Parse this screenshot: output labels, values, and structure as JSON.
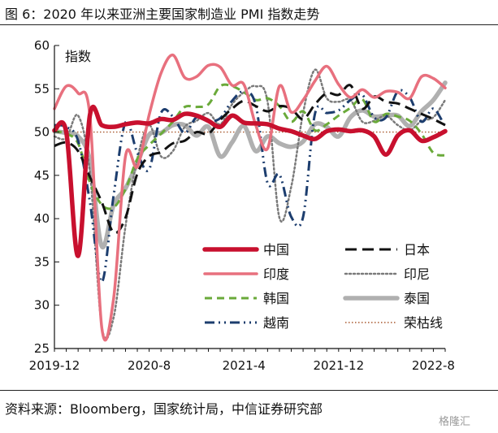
{
  "figure": {
    "title": "图 6：2020 年以来亚洲主要国家制造业 PMI 指数走势",
    "source": "资料来源：Bloomberg，国家统计局，中信证券研究部",
    "watermark": "格隆汇"
  },
  "chart_data": {
    "type": "line",
    "ylabel": "指数",
    "ylim": [
      25,
      60
    ],
    "yticks": [
      25,
      30,
      35,
      40,
      45,
      50,
      55,
      60
    ],
    "xticks": [
      "2019-12",
      "2020-8",
      "2021-4",
      "2021-12",
      "2022-8"
    ],
    "x": [
      "2019-12",
      "2020-1",
      "2020-2",
      "2020-3",
      "2020-4",
      "2020-5",
      "2020-6",
      "2020-7",
      "2020-8",
      "2020-9",
      "2020-10",
      "2020-11",
      "2020-12",
      "2021-1",
      "2021-2",
      "2021-3",
      "2021-4",
      "2021-5",
      "2021-6",
      "2021-7",
      "2021-8",
      "2021-9",
      "2021-10",
      "2021-11",
      "2021-12",
      "2022-1",
      "2022-2",
      "2022-3",
      "2022-4",
      "2022-5",
      "2022-6",
      "2022-7",
      "2022-8",
      "2022-9"
    ],
    "grid": false,
    "legend_position": "bottom-right",
    "series": [
      {
        "name": "中国",
        "color": "#c8102e",
        "style": "solid-thick",
        "values": [
          50.2,
          50.0,
          35.7,
          52.0,
          50.8,
          50.6,
          50.9,
          51.1,
          51.0,
          51.5,
          51.4,
          52.1,
          51.9,
          51.3,
          50.6,
          51.9,
          51.1,
          51.0,
          50.9,
          50.4,
          50.1,
          49.6,
          49.2,
          50.1,
          50.3,
          50.1,
          50.2,
          49.5,
          47.4,
          49.6,
          50.2,
          49.0,
          49.4,
          50.1
        ]
      },
      {
        "name": "日本",
        "color": "#111111",
        "style": "longdash",
        "values": [
          48.4,
          48.8,
          47.8,
          44.8,
          41.9,
          38.4,
          40.1,
          45.2,
          47.2,
          47.7,
          48.7,
          49.0,
          50.0,
          49.8,
          51.4,
          52.7,
          53.6,
          53.0,
          52.4,
          53.0,
          52.7,
          51.5,
          53.2,
          54.5,
          54.3,
          55.4,
          52.7,
          54.1,
          53.5,
          53.3,
          52.7,
          52.1,
          51.5,
          50.8
        ]
      },
      {
        "name": "印度",
        "color": "#e8707e",
        "style": "solid",
        "values": [
          52.7,
          55.3,
          54.5,
          51.8,
          27.4,
          30.8,
          47.2,
          46.0,
          52.0,
          56.8,
          58.9,
          56.3,
          56.4,
          57.7,
          57.5,
          55.4,
          55.5,
          50.8,
          48.1,
          55.3,
          52.3,
          53.7,
          55.9,
          57.6,
          55.5,
          54.0,
          54.9,
          54.0,
          54.7,
          54.6,
          53.9,
          56.4,
          56.2,
          55.1
        ]
      },
      {
        "name": "印尼",
        "color": "#7a7a7a",
        "style": "dotted",
        "values": [
          49.5,
          49.3,
          51.9,
          45.3,
          27.5,
          28.6,
          39.1,
          46.9,
          50.8,
          47.2,
          47.8,
          50.6,
          51.3,
          52.2,
          50.9,
          53.2,
          54.6,
          55.3,
          53.5,
          40.1,
          43.7,
          52.2,
          57.2,
          53.9,
          53.5,
          53.7,
          51.2,
          51.3,
          51.9,
          50.8,
          50.2,
          51.3,
          51.7,
          53.7
        ]
      },
      {
        "name": "韩国",
        "color": "#6aaa3a",
        "style": "dashed",
        "values": [
          50.1,
          49.8,
          48.7,
          44.2,
          41.6,
          41.3,
          43.4,
          46.9,
          48.5,
          49.8,
          51.2,
          52.9,
          52.9,
          53.2,
          55.3,
          55.3,
          54.6,
          53.7,
          53.9,
          53.0,
          51.2,
          52.4,
          50.2,
          50.9,
          51.9,
          52.8,
          53.8,
          51.2,
          52.1,
          51.8,
          51.3,
          49.8,
          47.6,
          47.3
        ]
      },
      {
        "name": "泰国",
        "color": "#b0b0b0",
        "style": "solid-thick",
        "values": [
          50.1,
          49.9,
          49.5,
          46.7,
          36.8,
          41.6,
          43.5,
          46.4,
          49.7,
          49.9,
          50.8,
          50.8,
          49.6,
          50.6,
          47.2,
          48.8,
          50.7,
          47.8,
          49.5,
          48.7,
          48.3,
          48.9,
          50.9,
          50.6,
          49.5,
          51.7,
          52.5,
          51.8,
          51.9,
          51.9,
          50.7,
          52.4,
          53.7,
          55.7
        ]
      },
      {
        "name": "越南",
        "color": "#1c3d6e",
        "style": "dashdotdot",
        "values": [
          50.8,
          50.6,
          49.0,
          41.9,
          32.7,
          42.7,
          51.1,
          47.6,
          45.7,
          52.2,
          51.8,
          49.9,
          51.7,
          51.3,
          51.6,
          53.6,
          54.7,
          53.1,
          44.1,
          45.1,
          40.2,
          40.2,
          52.1,
          52.2,
          52.5,
          53.7,
          54.3,
          51.7,
          51.7,
          54.7,
          54.0,
          51.2,
          52.7,
          50.6
        ]
      },
      {
        "name": "荣枯线",
        "color": "#a8582e",
        "style": "reference-dotted",
        "values": [
          50,
          50,
          50,
          50,
          50,
          50,
          50,
          50,
          50,
          50,
          50,
          50,
          50,
          50,
          50,
          50,
          50,
          50,
          50,
          50,
          50,
          50,
          50,
          50,
          50,
          50,
          50,
          50,
          50,
          50,
          50,
          50,
          50,
          50
        ]
      }
    ]
  }
}
